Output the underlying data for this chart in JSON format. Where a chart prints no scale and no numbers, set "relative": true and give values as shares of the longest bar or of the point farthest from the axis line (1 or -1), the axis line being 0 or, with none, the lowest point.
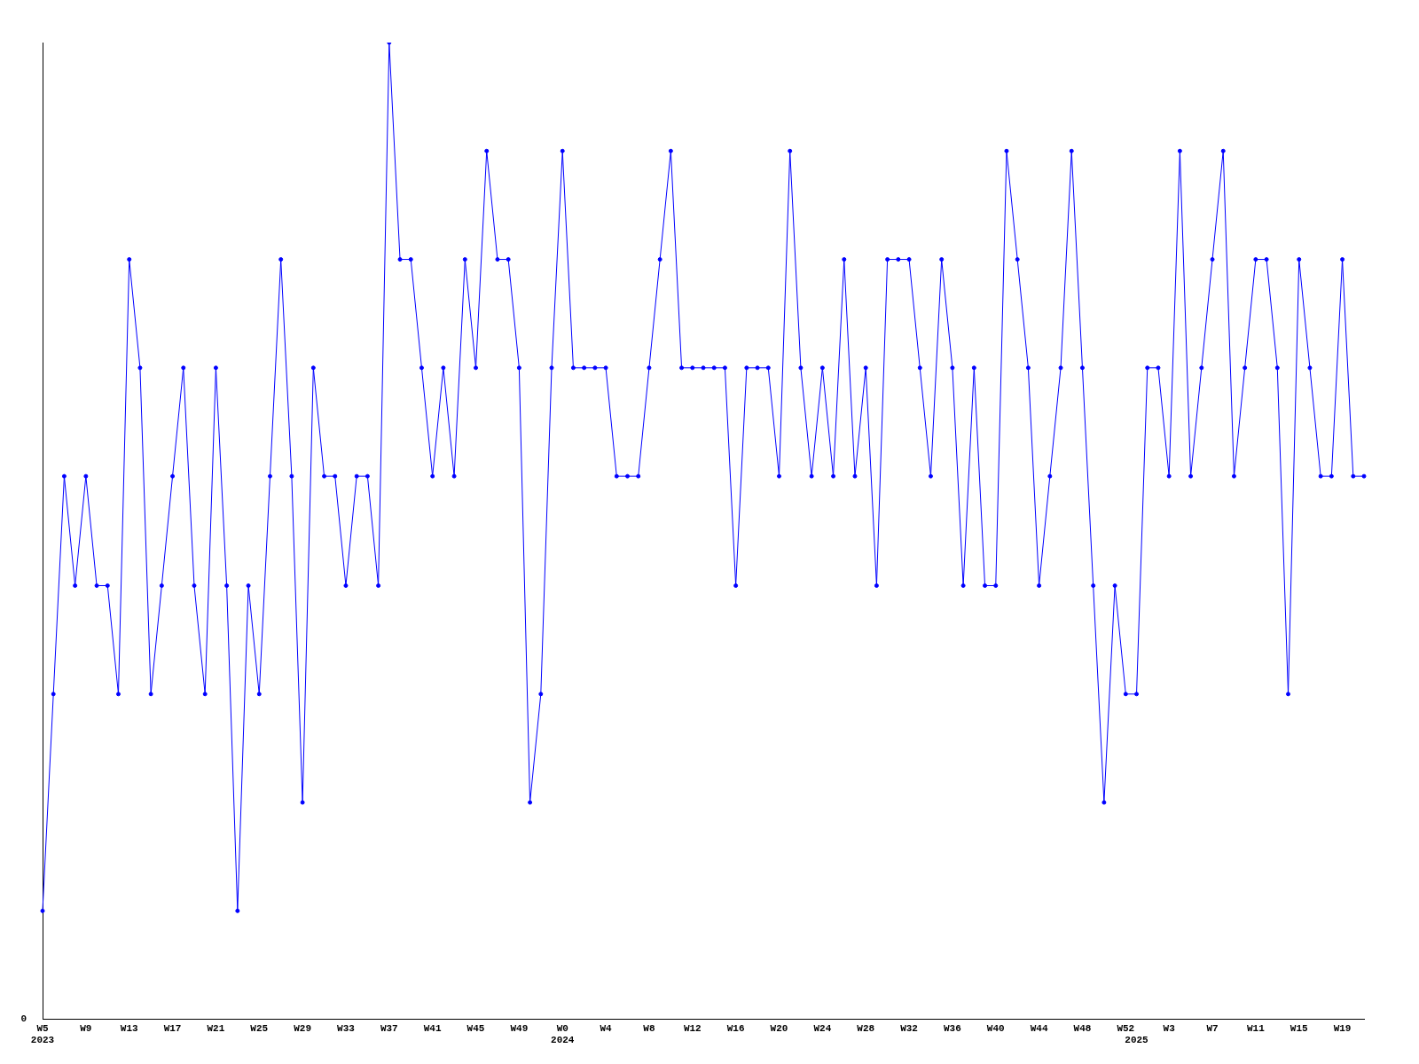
{
  "chart_data": {
    "type": "line",
    "relative": true,
    "legend": false,
    "grid": false,
    "marker": "circle",
    "line_style": "solid",
    "annotations": [
      "0"
    ],
    "categories": [
      "W5\n2023",
      null,
      null,
      null,
      "W9",
      null,
      null,
      null,
      "W13",
      null,
      null,
      null,
      "W17",
      null,
      null,
      null,
      "W21",
      null,
      null,
      null,
      "W25",
      null,
      null,
      null,
      "W29",
      null,
      null,
      null,
      "W33",
      null,
      null,
      null,
      "W37",
      null,
      null,
      null,
      "W41",
      null,
      null,
      null,
      "W45",
      null,
      null,
      null,
      "W49",
      null,
      null,
      null,
      "W0\n2024",
      null,
      null,
      null,
      "W4",
      null,
      null,
      null,
      "W8",
      null,
      null,
      null,
      "W12",
      null,
      null,
      null,
      "W16",
      null,
      null,
      null,
      "W20",
      null,
      null,
      null,
      "W24",
      null,
      null,
      null,
      "W28",
      null,
      null,
      null,
      "W32",
      null,
      null,
      null,
      "W36",
      null,
      null,
      null,
      "W40",
      null,
      null,
      null,
      "W44",
      null,
      null,
      null,
      "W48",
      null,
      null,
      null,
      "W52",
      "\n2025",
      null,
      null,
      "W3",
      null,
      null,
      null,
      "W7",
      null,
      null,
      null,
      "W11",
      null,
      null,
      null,
      "W15",
      null,
      null,
      null,
      "W19",
      null,
      null
    ],
    "series": [
      {
        "color": "#0000ff",
        "values": [
          0.111,
          0.333,
          0.556,
          0.444,
          0.556,
          0.444,
          0.444,
          0.333,
          0.778,
          0.667,
          0.333,
          0.444,
          0.556,
          0.667,
          0.444,
          0.333,
          0.667,
          0.444,
          0.111,
          0.444,
          0.333,
          0.556,
          0.778,
          0.556,
          0.222,
          0.667,
          0.556,
          0.556,
          0.444,
          0.556,
          0.556,
          0.444,
          1,
          0.778,
          0.778,
          0.667,
          0.556,
          0.667,
          0.556,
          0.778,
          0.667,
          0.889,
          0.778,
          0.778,
          0.667,
          0.222,
          0.333,
          0.667,
          0.889,
          0.667,
          0.667,
          0.667,
          0.667,
          0.556,
          0.556,
          0.556,
          0.667,
          0.778,
          0.889,
          0.667,
          0.667,
          0.667,
          0.667,
          0.667,
          0.444,
          0.667,
          0.667,
          0.667,
          0.556,
          0.889,
          0.667,
          0.556,
          0.667,
          0.556,
          0.778,
          0.556,
          0.667,
          0.444,
          0.778,
          0.778,
          0.778,
          0.667,
          0.556,
          0.778,
          0.667,
          0.444,
          0.667,
          0.444,
          0.444,
          0.889,
          0.778,
          0.667,
          0.444,
          0.556,
          0.667,
          0.889,
          0.667,
          0.444,
          0.222,
          0.444,
          0.333,
          0.333,
          0.667,
          0.667,
          0.556,
          0.889,
          0.556,
          0.667,
          0.778,
          0.889,
          0.556,
          0.667,
          0.778,
          0.778,
          0.667,
          0.333,
          0.778,
          0.667,
          0.556,
          0.556,
          0.778,
          0.556,
          0.556
        ]
      }
    ]
  }
}
